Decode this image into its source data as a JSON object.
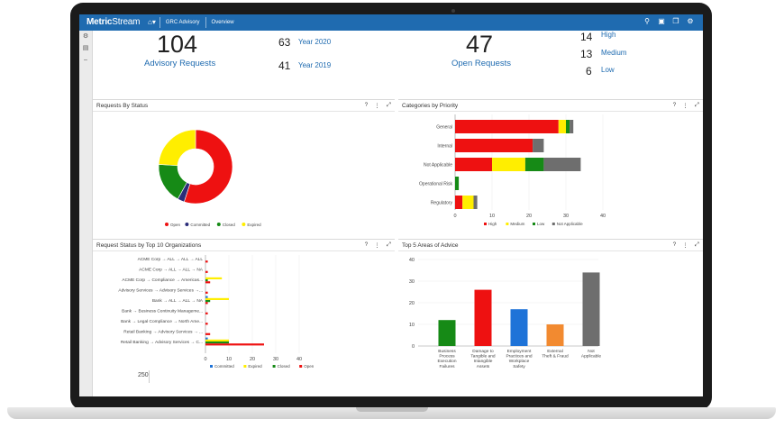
{
  "app": {
    "brand_bold": "Metric",
    "brand_thin": "Stream",
    "home_icon": "home-icon"
  },
  "breadcrumbs": [
    "GRC Advisory",
    "Overview"
  ],
  "toolbar_icons": [
    "search-icon",
    "calendar-icon",
    "copy-icon",
    "settings-icon"
  ],
  "kpis": {
    "advisory_total": "104",
    "advisory_label": "Advisory Requests",
    "year_2020_value": "63",
    "year_2020_label": "Year 2020",
    "year_2019_value": "41",
    "year_2019_label": "Year 2019",
    "open_total": "47",
    "open_label": "Open Requests",
    "high_value": "14",
    "high_label": "High",
    "medium_value": "13",
    "medium_label": "Medium",
    "low_value": "6",
    "low_label": "Low"
  },
  "panels": {
    "status": "Requests By Status",
    "priority": "Categories by Priority",
    "orgs": "Request Status by Top 10 Organizations",
    "advice": "Top 5 Areas of Advice"
  },
  "colors": {
    "red": "#ee1111",
    "yellow": "#ffee00",
    "green": "#168a16",
    "gray": "#6e6e6e",
    "navy": "#2b2d7a",
    "blue": "#1e73d8",
    "orange": "#f28a30",
    "brand": "#1f6bb0"
  },
  "footer_value": "250",
  "chart_data": [
    {
      "type": "pie",
      "title": "Requests By Status",
      "labels": [
        "Open",
        "Committed",
        "Closed",
        "Expired"
      ],
      "values": [
        55,
        3,
        18,
        24
      ],
      "colors": [
        "#ee1111",
        "#2b2d7a",
        "#168a16",
        "#ffee00"
      ]
    },
    {
      "type": "bar",
      "orientation": "horizontal",
      "stacked": true,
      "title": "Categories by Priority",
      "categories": [
        "General",
        "Internal",
        "Not Applicable",
        "Operational Risk",
        "Regulatory"
      ],
      "series": [
        {
          "name": "High",
          "values": [
            28,
            21,
            10,
            0,
            2
          ],
          "color": "#ee1111"
        },
        {
          "name": "Medium",
          "values": [
            2,
            0,
            9,
            0,
            3
          ],
          "color": "#ffee00"
        },
        {
          "name": "Low",
          "values": [
            1,
            0,
            5,
            1,
            0
          ],
          "color": "#168a16"
        },
        {
          "name": "Not Applicable",
          "values": [
            1,
            3,
            10,
            0,
            1
          ],
          "color": "#6e6e6e"
        }
      ],
      "xticks": [
        0,
        10,
        20,
        30,
        40
      ],
      "xlim": [
        0,
        40
      ]
    },
    {
      "type": "bar",
      "orientation": "horizontal",
      "title": "Request Status by Top 10 Organizations",
      "categories": [
        "ACME Corp → ALL → ALL → ALL",
        "ACME Corp → ALL → ALL → NA",
        "ACME Corp → Compliance → Americas...",
        "Advisory Services → Advisory Services →...",
        "Bank → ALL → ALL → NA",
        "Bank → Business Continuity Manageme...",
        "Bank → Legal Compliance → North Ame...",
        "Retail Banking → Advisory Services → ...",
        "Retail Banking → Advisory Services → C..."
      ],
      "series": [
        {
          "name": "Committed",
          "values": [
            0,
            0,
            0,
            0,
            1,
            0,
            0,
            0,
            1
          ],
          "color": "#1e73d8"
        },
        {
          "name": "Expired",
          "values": [
            0,
            0,
            7,
            0,
            10,
            0,
            0,
            0,
            10
          ],
          "color": "#ffee00"
        },
        {
          "name": "Closed",
          "values": [
            0,
            0,
            1,
            0,
            2,
            0,
            0,
            0,
            10
          ],
          "color": "#168a16"
        },
        {
          "name": "Open",
          "values": [
            1,
            1,
            2,
            1,
            1,
            1,
            1,
            2,
            25
          ],
          "color": "#ee1111"
        }
      ],
      "xticks": [
        0,
        10,
        20,
        30,
        40
      ],
      "xlim": [
        0,
        40
      ]
    },
    {
      "type": "bar",
      "title": "Top 5 Areas of Advice",
      "categories": [
        "Business Process Execution Failures",
        "Damage to Tangible and Intangible Assets",
        "Employment Practices and Workplace Safety",
        "External Theft & Fraud",
        "Not Applicable"
      ],
      "values": [
        12,
        26,
        17,
        10,
        34
      ],
      "colors": [
        "#168a16",
        "#ee1111",
        "#1e73d8",
        "#f28a30",
        "#6e6e6e"
      ],
      "yticks": [
        0,
        10,
        20,
        30,
        40
      ],
      "ylim": [
        0,
        40
      ]
    }
  ]
}
